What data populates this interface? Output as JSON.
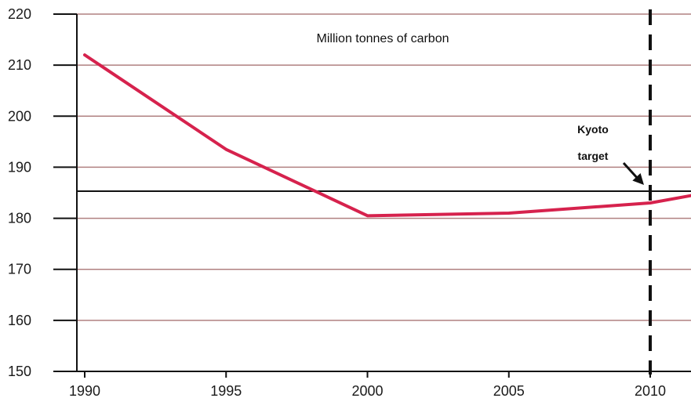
{
  "chart_data": {
    "type": "line",
    "title": "",
    "unit_label": "Million tonnes of carbon",
    "xlabel": "",
    "ylabel": "",
    "x_ticks": [
      "1990",
      "1995",
      "2000",
      "2005",
      "2010"
    ],
    "y_ticks": [
      "220",
      "210",
      "200",
      "190",
      "180",
      "170",
      "160",
      "150"
    ],
    "xlim": [
      1990,
      2011.5
    ],
    "ylim": [
      150,
      220
    ],
    "grid": "horizontal",
    "series": [
      {
        "x": [
          1990,
          1995,
          2000,
          2005,
          2010,
          2011.5
        ],
        "y": [
          212,
          193.5,
          180.5,
          181,
          183,
          184.5
        ],
        "color": "#d6224d"
      }
    ],
    "reference_line": {
      "y": 185.3,
      "color": "#111111"
    },
    "target_year_line": {
      "x": 2010,
      "style": "dashed",
      "color": "#111111"
    },
    "annotation": {
      "lines": [
        "Kyoto",
        "target"
      ],
      "arrow_to": {
        "x": 2010,
        "y": 185.3
      }
    },
    "colors": {
      "gridline": "#b08080",
      "axis": "#111111",
      "series": "#d6224d"
    }
  }
}
